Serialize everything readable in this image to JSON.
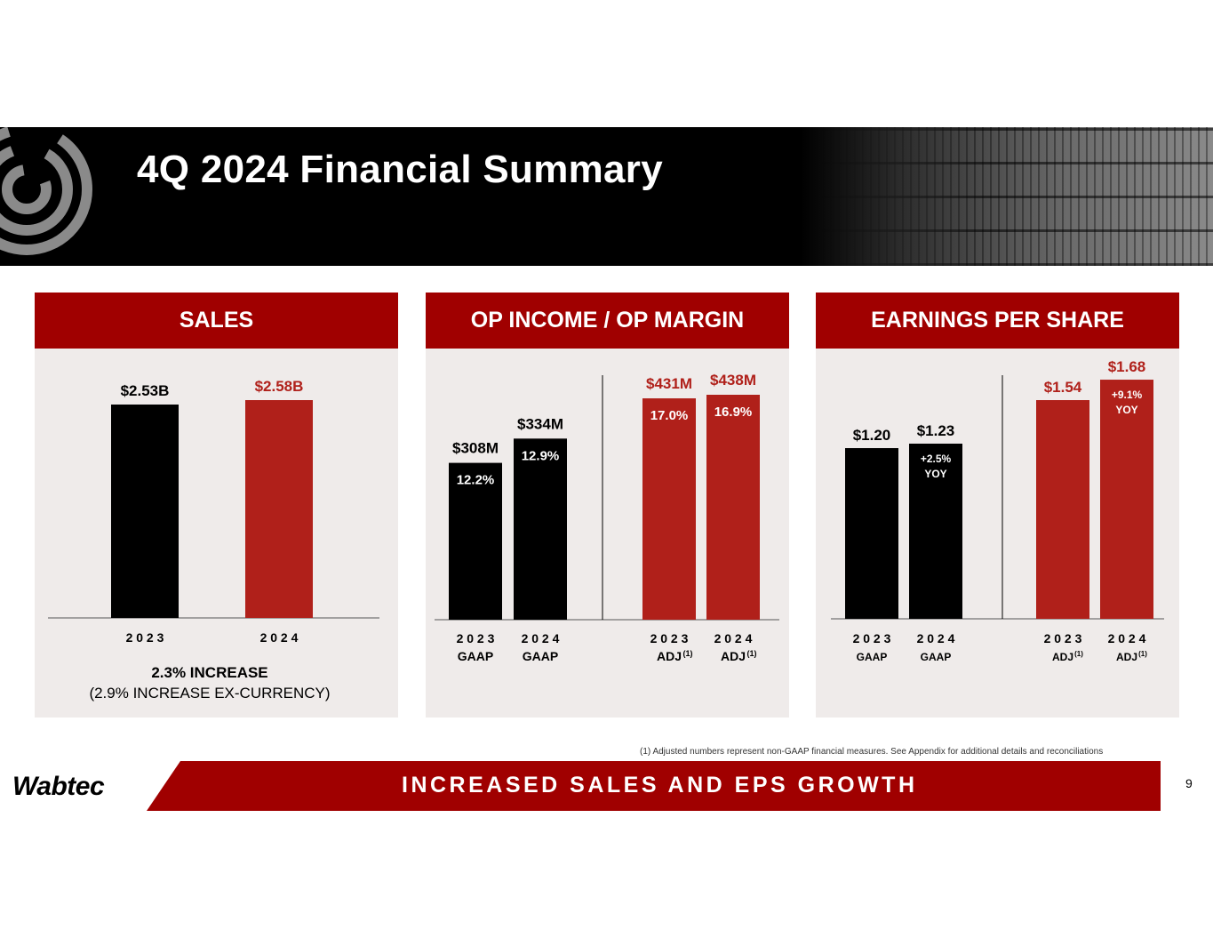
{
  "slide": {
    "title": "4Q 2024 Financial Summary",
    "footnote": "(1)  Adjusted numbers represent non-GAAP financial measures.  See Appendix for additional details and reconciliations",
    "tagline": "INCREASED SALES AND EPS GROWTH",
    "brand": "Wabtec",
    "page_number": "9",
    "colors": {
      "accent": "#a00000",
      "bar_black": "#000000",
      "bar_red": "#b0201a",
      "panel_bg": "#efebea"
    }
  },
  "panels": {
    "sales": {
      "heading": "SALES"
    },
    "op_income": {
      "heading": "OP INCOME / OP MARGIN"
    },
    "eps": {
      "heading": "EARNINGS PER SHARE"
    }
  },
  "chart_data": [
    {
      "type": "bar",
      "heading": "SALES",
      "categories": [
        "2 0 2 3",
        "2 0 2 4"
      ],
      "values": [
        2.53,
        2.58
      ],
      "value_labels": [
        "$2.53B",
        "$2.58B"
      ],
      "colors": [
        "#000000",
        "#b0201a"
      ],
      "label_colors": [
        "#000000",
        "#b0201a"
      ],
      "note_line1": "2.3% INCREASE",
      "note_line2": "(2.9% INCREASE EX-CURRENCY)"
    },
    {
      "type": "bar",
      "heading": "OP INCOME / OP MARGIN",
      "categories": [
        "2 0 2 3",
        "2 0 2 4",
        "2 0 2 3",
        "2 0 2 4"
      ],
      "subcategories": [
        "GAAP",
        "GAAP",
        "ADJ",
        "ADJ"
      ],
      "superscripts": [
        "",
        "",
        "(1)",
        "(1)"
      ],
      "values": [
        308,
        334,
        431,
        438
      ],
      "value_labels": [
        "$308M",
        "$334M",
        "$431M",
        "$438M"
      ],
      "margins": [
        "12.2%",
        "12.9%",
        "17.0%",
        "16.9%"
      ],
      "colors": [
        "#000000",
        "#000000",
        "#b0201a",
        "#b0201a"
      ],
      "label_colors": [
        "#000000",
        "#000000",
        "#b0201a",
        "#b0201a"
      ]
    },
    {
      "type": "bar",
      "heading": "EARNINGS PER SHARE",
      "categories": [
        "2 0 2 3",
        "2 0 2 4",
        "2 0 2 3",
        "2 0 2 4"
      ],
      "subcategories": [
        "GAAP",
        "GAAP",
        "ADJ",
        "ADJ"
      ],
      "superscripts": [
        "",
        "",
        "(1)",
        "(1)"
      ],
      "values": [
        1.2,
        1.23,
        1.54,
        1.68
      ],
      "value_labels": [
        "$1.20",
        "$1.23",
        "$1.54",
        "$1.68"
      ],
      "annotations": [
        [
          "",
          ""
        ],
        [
          "+2.5%",
          "YOY"
        ],
        [
          "",
          ""
        ],
        [
          "+9.1%",
          "YOY"
        ]
      ],
      "colors": [
        "#000000",
        "#000000",
        "#b0201a",
        "#b0201a"
      ],
      "label_colors": [
        "#000000",
        "#000000",
        "#b0201a",
        "#b0201a"
      ]
    }
  ]
}
